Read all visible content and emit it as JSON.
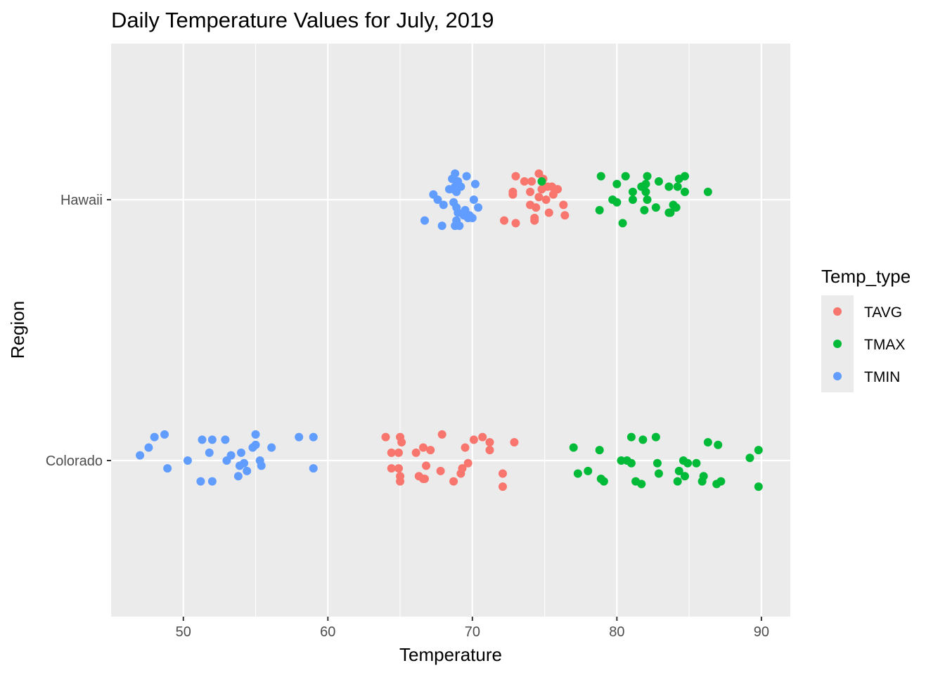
{
  "chart_data": {
    "type": "scatter",
    "title": "Daily Temperature Values for July, 2019",
    "xlabel": "Temperature",
    "ylabel": "Region",
    "xlim": [
      45,
      92
    ],
    "xticks": [
      50,
      60,
      70,
      80,
      90
    ],
    "categories": [
      "Colorado",
      "Hawaii"
    ],
    "grid": true,
    "legend": {
      "title": "Temp_type",
      "position": "right"
    },
    "colors": {
      "TAVG": "#F8766D",
      "TMAX": "#00BA38",
      "TMIN": "#619CFF",
      "panel": "#EBEBEB"
    },
    "series": [
      {
        "name": "TAVG",
        "points": [
          {
            "region": "Hawaii",
            "x": 73.0,
            "jitter": 0.09
          },
          {
            "region": "Hawaii",
            "x": 73.6,
            "jitter": 0.07
          },
          {
            "region": "Hawaii",
            "x": 74.1,
            "jitter": 0.07
          },
          {
            "region": "Hawaii",
            "x": 74.6,
            "jitter": 0.1
          },
          {
            "region": "Hawaii",
            "x": 74.9,
            "jitter": 0.08
          },
          {
            "region": "Hawaii",
            "x": 75.2,
            "jitter": 0.05
          },
          {
            "region": "Hawaii",
            "x": 75.9,
            "jitter": 0.04
          },
          {
            "region": "Hawaii",
            "x": 74.0,
            "jitter": 0.03
          },
          {
            "region": "Hawaii",
            "x": 72.8,
            "jitter": 0.03
          },
          {
            "region": "Hawaii",
            "x": 72.8,
            "jitter": 0.02
          },
          {
            "region": "Hawaii",
            "x": 74.6,
            "jitter": 0.01
          },
          {
            "region": "Hawaii",
            "x": 75.1,
            "jitter": 0.0
          },
          {
            "region": "Hawaii",
            "x": 75.6,
            "jitter": 0.02
          },
          {
            "region": "Hawaii",
            "x": 74.0,
            "jitter": -0.02
          },
          {
            "region": "Hawaii",
            "x": 74.4,
            "jitter": -0.03
          },
          {
            "region": "Hawaii",
            "x": 76.3,
            "jitter": -0.02
          },
          {
            "region": "Hawaii",
            "x": 75.3,
            "jitter": -0.05
          },
          {
            "region": "Hawaii",
            "x": 76.4,
            "jitter": -0.06
          },
          {
            "region": "Hawaii",
            "x": 72.2,
            "jitter": -0.08
          },
          {
            "region": "Hawaii",
            "x": 73.0,
            "jitter": -0.09
          },
          {
            "region": "Hawaii",
            "x": 74.3,
            "jitter": -0.07
          },
          {
            "region": "Hawaii",
            "x": 74.3,
            "jitter": -0.08
          },
          {
            "region": "Hawaii",
            "x": 75.5,
            "jitter": 0.05
          },
          {
            "region": "Hawaii",
            "x": 74.8,
            "jitter": 0.04
          },
          {
            "region": "Colorado",
            "x": 64.0,
            "jitter": 0.09
          },
          {
            "region": "Colorado",
            "x": 65.0,
            "jitter": 0.09
          },
          {
            "region": "Colorado",
            "x": 65.1,
            "jitter": 0.07
          },
          {
            "region": "Colorado",
            "x": 67.9,
            "jitter": 0.1
          },
          {
            "region": "Colorado",
            "x": 70.1,
            "jitter": 0.08
          },
          {
            "region": "Colorado",
            "x": 70.7,
            "jitter": 0.09
          },
          {
            "region": "Colorado",
            "x": 71.2,
            "jitter": 0.07
          },
          {
            "region": "Colorado",
            "x": 72.9,
            "jitter": 0.07
          },
          {
            "region": "Colorado",
            "x": 66.6,
            "jitter": 0.05
          },
          {
            "region": "Colorado",
            "x": 67.1,
            "jitter": 0.04
          },
          {
            "region": "Colorado",
            "x": 66.1,
            "jitter": 0.03
          },
          {
            "region": "Colorado",
            "x": 64.4,
            "jitter": 0.03
          },
          {
            "region": "Colorado",
            "x": 64.9,
            "jitter": 0.03
          },
          {
            "region": "Colorado",
            "x": 69.5,
            "jitter": 0.05
          },
          {
            "region": "Colorado",
            "x": 71.2,
            "jitter": 0.04
          },
          {
            "region": "Colorado",
            "x": 69.7,
            "jitter": -0.01
          },
          {
            "region": "Colorado",
            "x": 64.4,
            "jitter": -0.03
          },
          {
            "region": "Colorado",
            "x": 64.9,
            "jitter": -0.03
          },
          {
            "region": "Colorado",
            "x": 66.8,
            "jitter": -0.02
          },
          {
            "region": "Colorado",
            "x": 67.8,
            "jitter": -0.04
          },
          {
            "region": "Colorado",
            "x": 69.3,
            "jitter": -0.03
          },
          {
            "region": "Colorado",
            "x": 69.2,
            "jitter": -0.05
          },
          {
            "region": "Colorado",
            "x": 66.3,
            "jitter": -0.06
          },
          {
            "region": "Colorado",
            "x": 65.0,
            "jitter": -0.06
          },
          {
            "region": "Colorado",
            "x": 66.7,
            "jitter": -0.07
          },
          {
            "region": "Colorado",
            "x": 65.0,
            "jitter": -0.08
          },
          {
            "region": "Colorado",
            "x": 68.7,
            "jitter": -0.08
          },
          {
            "region": "Colorado",
            "x": 72.1,
            "jitter": -0.05
          },
          {
            "region": "Colorado",
            "x": 72.1,
            "jitter": -0.1
          },
          {
            "region": "Colorado",
            "x": 66.6,
            "jitter": -0.07
          }
        ]
      },
      {
        "name": "TMAX",
        "points": [
          {
            "region": "Hawaii",
            "x": 78.9,
            "jitter": 0.09
          },
          {
            "region": "Hawaii",
            "x": 80.6,
            "jitter": 0.09
          },
          {
            "region": "Hawaii",
            "x": 82.1,
            "jitter": 0.09
          },
          {
            "region": "Hawaii",
            "x": 84.7,
            "jitter": 0.09
          },
          {
            "region": "Hawaii",
            "x": 84.3,
            "jitter": 0.08
          },
          {
            "region": "Hawaii",
            "x": 80.0,
            "jitter": 0.06
          },
          {
            "region": "Hawaii",
            "x": 82.0,
            "jitter": 0.06
          },
          {
            "region": "Hawaii",
            "x": 82.9,
            "jitter": 0.07
          },
          {
            "region": "Hawaii",
            "x": 83.6,
            "jitter": 0.05
          },
          {
            "region": "Hawaii",
            "x": 81.7,
            "jitter": 0.05
          },
          {
            "region": "Hawaii",
            "x": 84.2,
            "jitter": 0.05
          },
          {
            "region": "Hawaii",
            "x": 81.1,
            "jitter": 0.03
          },
          {
            "region": "Hawaii",
            "x": 82.0,
            "jitter": 0.03
          },
          {
            "region": "Hawaii",
            "x": 84.7,
            "jitter": 0.03
          },
          {
            "region": "Hawaii",
            "x": 86.3,
            "jitter": 0.03
          },
          {
            "region": "Hawaii",
            "x": 74.8,
            "jitter": 0.07
          },
          {
            "region": "Hawaii",
            "x": 79.7,
            "jitter": 0.0
          },
          {
            "region": "Hawaii",
            "x": 80.0,
            "jitter": -0.01
          },
          {
            "region": "Hawaii",
            "x": 81.1,
            "jitter": 0.0
          },
          {
            "region": "Hawaii",
            "x": 82.1,
            "jitter": 0.0
          },
          {
            "region": "Hawaii",
            "x": 83.9,
            "jitter": -0.02
          },
          {
            "region": "Hawaii",
            "x": 82.7,
            "jitter": -0.03
          },
          {
            "region": "Hawaii",
            "x": 84.1,
            "jitter": -0.03
          },
          {
            "region": "Hawaii",
            "x": 78.8,
            "jitter": -0.04
          },
          {
            "region": "Hawaii",
            "x": 81.9,
            "jitter": -0.04
          },
          {
            "region": "Hawaii",
            "x": 83.7,
            "jitter": -0.05
          },
          {
            "region": "Hawaii",
            "x": 80.4,
            "jitter": -0.09
          },
          {
            "region": "Hawaii",
            "x": 83.6,
            "jitter": -0.05
          },
          {
            "region": "Colorado",
            "x": 81.0,
            "jitter": 0.09
          },
          {
            "region": "Colorado",
            "x": 81.8,
            "jitter": 0.08
          },
          {
            "region": "Colorado",
            "x": 82.7,
            "jitter": 0.09
          },
          {
            "region": "Colorado",
            "x": 86.3,
            "jitter": 0.07
          },
          {
            "region": "Colorado",
            "x": 87.0,
            "jitter": 0.06
          },
          {
            "region": "Colorado",
            "x": 77.0,
            "jitter": 0.05
          },
          {
            "region": "Colorado",
            "x": 78.8,
            "jitter": 0.04
          },
          {
            "region": "Colorado",
            "x": 89.8,
            "jitter": 0.04
          },
          {
            "region": "Colorado",
            "x": 89.2,
            "jitter": 0.01
          },
          {
            "region": "Colorado",
            "x": 80.3,
            "jitter": 0.0
          },
          {
            "region": "Colorado",
            "x": 80.7,
            "jitter": 0.0
          },
          {
            "region": "Colorado",
            "x": 81.0,
            "jitter": -0.01
          },
          {
            "region": "Colorado",
            "x": 82.8,
            "jitter": -0.01
          },
          {
            "region": "Colorado",
            "x": 84.6,
            "jitter": 0.0
          },
          {
            "region": "Colorado",
            "x": 84.9,
            "jitter": -0.01
          },
          {
            "region": "Colorado",
            "x": 85.5,
            "jitter": -0.01
          },
          {
            "region": "Colorado",
            "x": 78.0,
            "jitter": -0.04
          },
          {
            "region": "Colorado",
            "x": 77.3,
            "jitter": -0.05
          },
          {
            "region": "Colorado",
            "x": 82.9,
            "jitter": -0.05
          },
          {
            "region": "Colorado",
            "x": 84.3,
            "jitter": -0.04
          },
          {
            "region": "Colorado",
            "x": 84.7,
            "jitter": -0.06
          },
          {
            "region": "Colorado",
            "x": 86.0,
            "jitter": -0.06
          },
          {
            "region": "Colorado",
            "x": 87.2,
            "jitter": -0.08
          },
          {
            "region": "Colorado",
            "x": 78.9,
            "jitter": -0.07
          },
          {
            "region": "Colorado",
            "x": 79.1,
            "jitter": -0.08
          },
          {
            "region": "Colorado",
            "x": 81.3,
            "jitter": -0.08
          },
          {
            "region": "Colorado",
            "x": 81.7,
            "jitter": -0.09
          },
          {
            "region": "Colorado",
            "x": 84.2,
            "jitter": -0.08
          },
          {
            "region": "Colorado",
            "x": 85.9,
            "jitter": -0.08
          },
          {
            "region": "Colorado",
            "x": 86.9,
            "jitter": -0.09
          },
          {
            "region": "Colorado",
            "x": 89.8,
            "jitter": -0.1
          }
        ]
      },
      {
        "name": "TMIN",
        "points": [
          {
            "region": "Hawaii",
            "x": 68.8,
            "jitter": 0.1
          },
          {
            "region": "Hawaii",
            "x": 69.6,
            "jitter": 0.09
          },
          {
            "region": "Hawaii",
            "x": 68.6,
            "jitter": 0.08
          },
          {
            "region": "Hawaii",
            "x": 69.0,
            "jitter": 0.07
          },
          {
            "region": "Hawaii",
            "x": 69.2,
            "jitter": 0.05
          },
          {
            "region": "Hawaii",
            "x": 70.2,
            "jitter": 0.06
          },
          {
            "region": "Hawaii",
            "x": 68.4,
            "jitter": 0.04
          },
          {
            "region": "Hawaii",
            "x": 68.7,
            "jitter": 0.04
          },
          {
            "region": "Hawaii",
            "x": 68.9,
            "jitter": 0.03
          },
          {
            "region": "Hawaii",
            "x": 68.8,
            "jitter": 0.05
          },
          {
            "region": "Hawaii",
            "x": 67.3,
            "jitter": 0.02
          },
          {
            "region": "Hawaii",
            "x": 67.6,
            "jitter": 0.0
          },
          {
            "region": "Hawaii",
            "x": 68.0,
            "jitter": -0.02
          },
          {
            "region": "Hawaii",
            "x": 68.7,
            "jitter": -0.01
          },
          {
            "region": "Hawaii",
            "x": 70.1,
            "jitter": 0.0
          },
          {
            "region": "Hawaii",
            "x": 68.9,
            "jitter": -0.03
          },
          {
            "region": "Hawaii",
            "x": 69.5,
            "jitter": -0.04
          },
          {
            "region": "Hawaii",
            "x": 70.4,
            "jitter": -0.03
          },
          {
            "region": "Hawaii",
            "x": 69.0,
            "jitter": -0.05
          },
          {
            "region": "Hawaii",
            "x": 69.8,
            "jitter": -0.06
          },
          {
            "region": "Hawaii",
            "x": 69.4,
            "jitter": -0.06
          },
          {
            "region": "Hawaii",
            "x": 70.0,
            "jitter": -0.07
          },
          {
            "region": "Hawaii",
            "x": 66.7,
            "jitter": -0.08
          },
          {
            "region": "Hawaii",
            "x": 67.9,
            "jitter": -0.1
          },
          {
            "region": "Hawaii",
            "x": 68.9,
            "jitter": -0.08
          },
          {
            "region": "Hawaii",
            "x": 68.8,
            "jitter": -0.1
          },
          {
            "region": "Hawaii",
            "x": 69.1,
            "jitter": -0.1
          },
          {
            "region": "Hawaii",
            "x": 69.7,
            "jitter": -0.07
          },
          {
            "region": "Colorado",
            "x": 48.0,
            "jitter": 0.09
          },
          {
            "region": "Colorado",
            "x": 48.7,
            "jitter": 0.1
          },
          {
            "region": "Colorado",
            "x": 55.0,
            "jitter": 0.1
          },
          {
            "region": "Colorado",
            "x": 58.0,
            "jitter": 0.09
          },
          {
            "region": "Colorado",
            "x": 59.0,
            "jitter": 0.09
          },
          {
            "region": "Colorado",
            "x": 51.3,
            "jitter": 0.08
          },
          {
            "region": "Colorado",
            "x": 52.0,
            "jitter": 0.08
          },
          {
            "region": "Colorado",
            "x": 52.9,
            "jitter": 0.08
          },
          {
            "region": "Colorado",
            "x": 47.6,
            "jitter": 0.05
          },
          {
            "region": "Colorado",
            "x": 55.0,
            "jitter": 0.06
          },
          {
            "region": "Colorado",
            "x": 56.1,
            "jitter": 0.05
          },
          {
            "region": "Colorado",
            "x": 54.8,
            "jitter": 0.05
          },
          {
            "region": "Colorado",
            "x": 51.8,
            "jitter": 0.03
          },
          {
            "region": "Colorado",
            "x": 54.0,
            "jitter": 0.03
          },
          {
            "region": "Colorado",
            "x": 47.0,
            "jitter": 0.02
          },
          {
            "region": "Colorado",
            "x": 53.3,
            "jitter": 0.02
          },
          {
            "region": "Colorado",
            "x": 50.3,
            "jitter": 0.0
          },
          {
            "region": "Colorado",
            "x": 53.0,
            "jitter": 0.0
          },
          {
            "region": "Colorado",
            "x": 54.2,
            "jitter": -0.01
          },
          {
            "region": "Colorado",
            "x": 55.3,
            "jitter": 0.0
          },
          {
            "region": "Colorado",
            "x": 53.9,
            "jitter": -0.02
          },
          {
            "region": "Colorado",
            "x": 55.4,
            "jitter": -0.02
          },
          {
            "region": "Colorado",
            "x": 48.9,
            "jitter": -0.03
          },
          {
            "region": "Colorado",
            "x": 59.0,
            "jitter": -0.03
          },
          {
            "region": "Colorado",
            "x": 54.4,
            "jitter": -0.04
          },
          {
            "region": "Colorado",
            "x": 53.8,
            "jitter": -0.06
          },
          {
            "region": "Colorado",
            "x": 51.2,
            "jitter": -0.08
          },
          {
            "region": "Colorado",
            "x": 52.0,
            "jitter": -0.08
          }
        ]
      }
    ]
  }
}
